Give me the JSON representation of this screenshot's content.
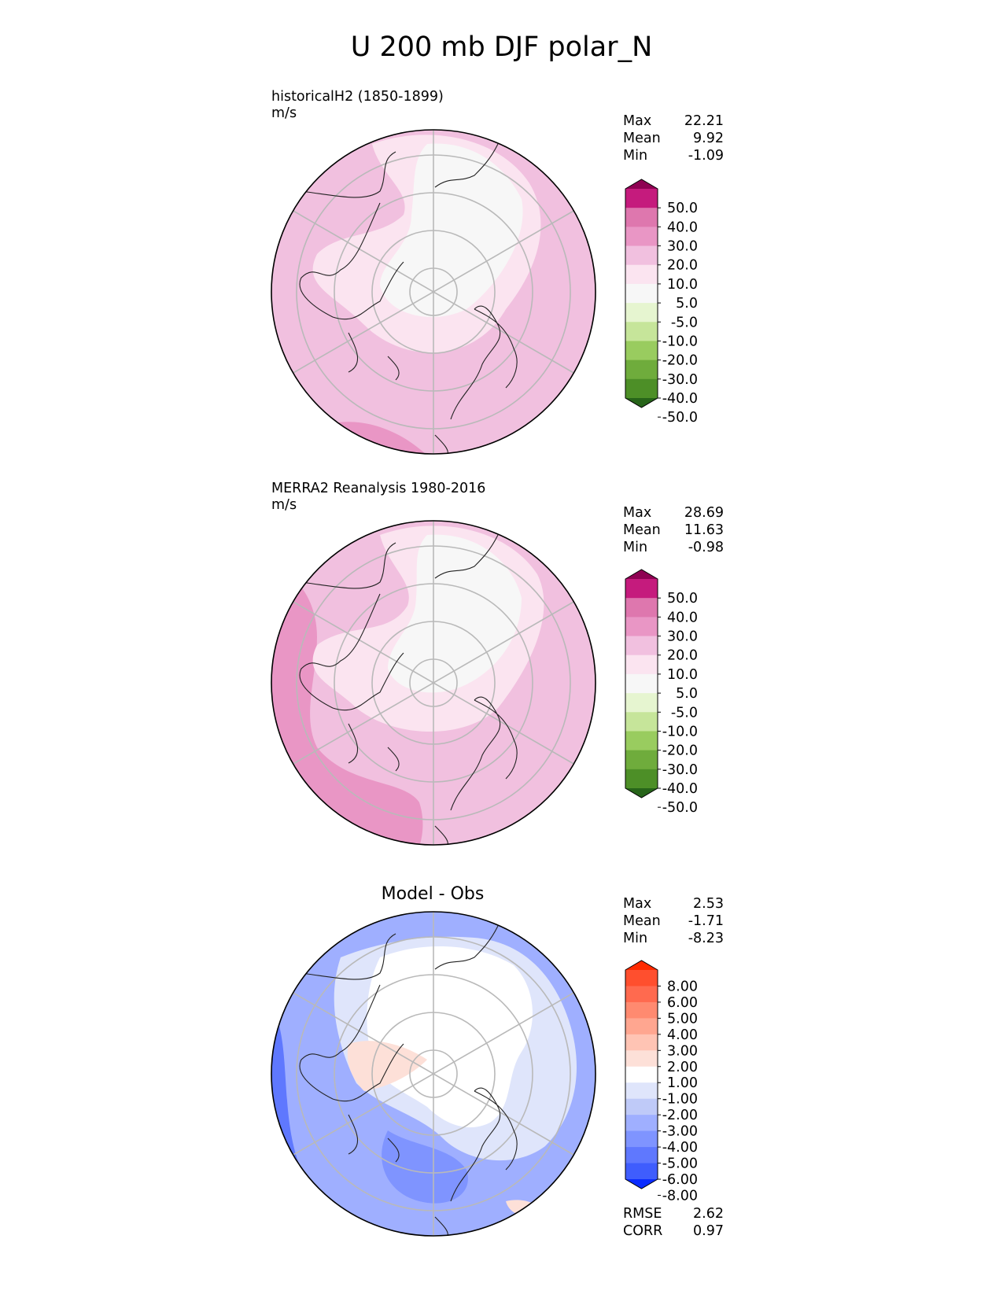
{
  "figure": {
    "title": "U 200 mb DJF polar_N"
  },
  "panels": [
    {
      "id": "test",
      "title": "historicalH2 (1850-1899)",
      "units": "m/s",
      "stats": [
        {
          "label": "Max",
          "value": "22.21"
        },
        {
          "label": "Mean",
          "value": "9.92"
        },
        {
          "label": "Min",
          "value": "-1.09"
        }
      ],
      "colorbar": {
        "labels": [
          "50.0",
          "40.0",
          "30.0",
          "20.0",
          "10.0",
          "5.0",
          "-5.0",
          "-10.0",
          "-20.0",
          "-30.0",
          "-40.0",
          "-50.0"
        ],
        "colors": [
          "#8e0152",
          "#c51b7d",
          "#de77ae",
          "#e996c5",
          "#f1c0df",
          "#fbe4f0",
          "#f7f7f7",
          "#e6f5d0",
          "#c6e59a",
          "#99cc5f",
          "#6fac3c",
          "#4d8f27",
          "#276419"
        ]
      }
    },
    {
      "id": "reference",
      "title": "MERRA2 Reanalysis 1980-2016",
      "units": "m/s",
      "stats": [
        {
          "label": "Max",
          "value": "28.69"
        },
        {
          "label": "Mean",
          "value": "11.63"
        },
        {
          "label": "Min",
          "value": "-0.98"
        }
      ],
      "colorbar": {
        "labels": [
          "50.0",
          "40.0",
          "30.0",
          "20.0",
          "10.0",
          "5.0",
          "-5.0",
          "-10.0",
          "-20.0",
          "-30.0",
          "-40.0",
          "-50.0"
        ],
        "colors": [
          "#8e0152",
          "#c51b7d",
          "#de77ae",
          "#e996c5",
          "#f1c0df",
          "#fbe4f0",
          "#f7f7f7",
          "#e6f5d0",
          "#c6e59a",
          "#99cc5f",
          "#6fac3c",
          "#4d8f27",
          "#276419"
        ]
      }
    },
    {
      "id": "diff",
      "title": "Model - Obs",
      "stats": [
        {
          "label": "Max",
          "value": "2.53"
        },
        {
          "label": "Mean",
          "value": "-1.71"
        },
        {
          "label": "Min",
          "value": "-8.23"
        }
      ],
      "metrics": [
        {
          "label": "RMSE",
          "value": "2.62"
        },
        {
          "label": "CORR",
          "value": "0.97"
        }
      ],
      "colorbar": {
        "labels": [
          "8.00",
          "6.00",
          "5.00",
          "4.00",
          "3.00",
          "2.00",
          "1.00",
          "-1.00",
          "-2.00",
          "-3.00",
          "-4.00",
          "-5.00",
          "-6.00",
          "-8.00"
        ],
        "colors": [
          "#ff2a00",
          "#ff4f2e",
          "#ff6a4f",
          "#ff8a70",
          "#ffa690",
          "#ffc4b4",
          "#fde0d8",
          "#ffffff",
          "#dfe5fb",
          "#bfcaf8",
          "#9fafff",
          "#7f94ff",
          "#5f78fe",
          "#3f5dfd",
          "#0a2bff"
        ]
      }
    }
  ]
}
